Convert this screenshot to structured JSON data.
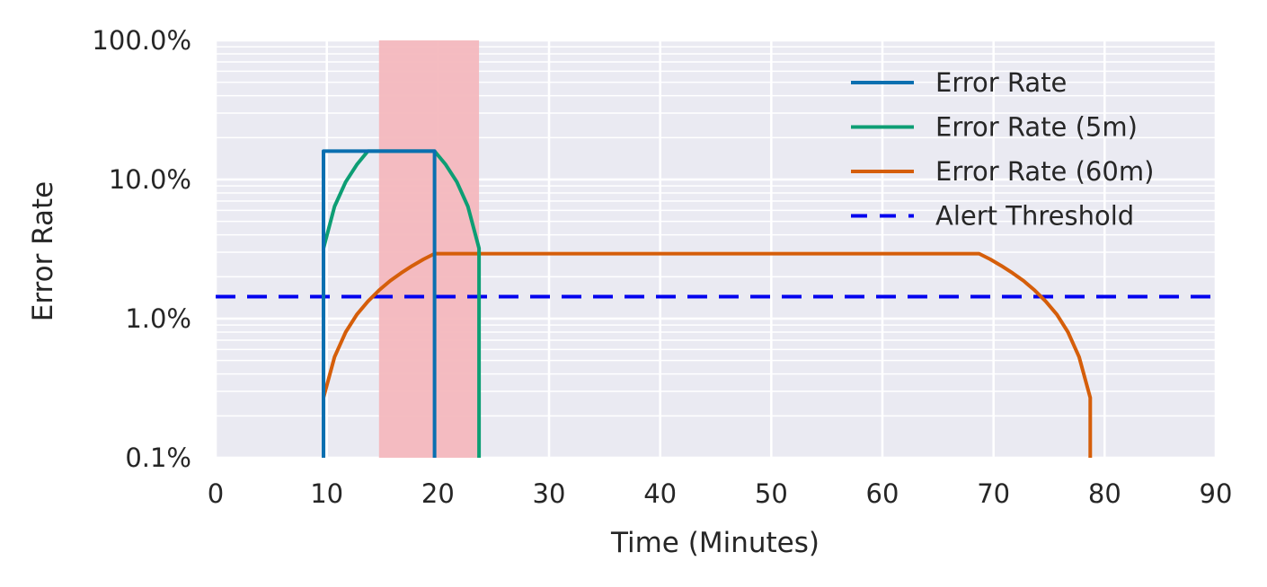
{
  "chart_data": {
    "type": "line",
    "xlabel": "Time (Minutes)",
    "ylabel": "Error Rate",
    "xlim": [
      0,
      90
    ],
    "ylim": [
      0.001,
      1.0
    ],
    "yscale": "log",
    "grid": true,
    "legend_position": "top-right",
    "x_ticks": [
      0,
      10,
      20,
      30,
      40,
      50,
      60,
      70,
      80,
      90
    ],
    "x_tick_labels": [
      "0",
      "10",
      "20",
      "30",
      "40",
      "50",
      "60",
      "70",
      "80",
      "90"
    ],
    "y_ticks": [
      0.001,
      0.01,
      0.1,
      1.0
    ],
    "y_tick_labels": [
      "0.1%",
      "1.0%",
      "10.0%",
      "100.0%"
    ],
    "shaded_region": {
      "x": [
        14.7,
        23.7
      ],
      "color": "#f4b8be"
    },
    "series": [
      {
        "name": "Error Rate",
        "color": "#0a6fb0",
        "style": "solid",
        "x": [
          9.7,
          9.7,
          19.7,
          19.7
        ],
        "y": [
          0.001,
          0.16,
          0.16,
          0.001
        ]
      },
      {
        "name": "Error Rate (5m)",
        "color": "#0d9e74",
        "style": "solid",
        "x": [
          9.7,
          9.7,
          10.7,
          11.7,
          12.7,
          13.7,
          14.7,
          19.7,
          20.7,
          21.7,
          22.7,
          23.7,
          23.7
        ],
        "y": [
          0.001,
          0.032,
          0.064,
          0.096,
          0.128,
          0.16,
          0.16,
          0.16,
          0.128,
          0.096,
          0.064,
          0.032,
          0.001
        ]
      },
      {
        "name": "Error Rate (60m)",
        "color": "#d55e0a",
        "style": "solid",
        "x": [
          9.7,
          9.7,
          10.7,
          11.7,
          12.7,
          13.7,
          14.7,
          15.7,
          16.7,
          17.7,
          18.7,
          19.7,
          68.7,
          69.7,
          70.7,
          71.7,
          72.7,
          73.7,
          74.7,
          75.7,
          76.7,
          77.7,
          78.7,
          78.7
        ],
        "y": [
          0.001,
          0.0027,
          0.0053,
          0.008,
          0.0107,
          0.0133,
          0.016,
          0.0187,
          0.0213,
          0.024,
          0.0267,
          0.0293,
          0.0293,
          0.0267,
          0.024,
          0.0213,
          0.0187,
          0.016,
          0.0133,
          0.0107,
          0.008,
          0.0053,
          0.0027,
          0.001
        ]
      },
      {
        "name": "Alert Threshold",
        "color": "#0000ee",
        "style": "dashed",
        "x": [
          0,
          90
        ],
        "y": [
          0.0144,
          0.0144
        ]
      }
    ]
  }
}
